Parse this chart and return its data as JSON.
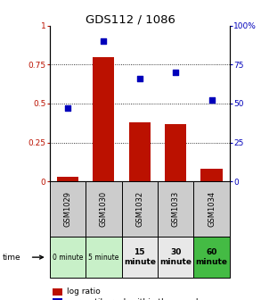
{
  "title": "GDS112 / 1086",
  "samples": [
    "GSM1029",
    "GSM1030",
    "GSM1032",
    "GSM1033",
    "GSM1034"
  ],
  "log_ratio": [
    0.03,
    0.8,
    0.38,
    0.37,
    0.08
  ],
  "percentile_rank": [
    47,
    90,
    66,
    70,
    52
  ],
  "time_labels": [
    "0 minute",
    "5 minute",
    "15\nminute",
    "30\nminute",
    "60\nminute"
  ],
  "time_colors": [
    "#c8f0c8",
    "#c8f0c8",
    "#e8e8e8",
    "#e8e8e8",
    "#44bb44"
  ],
  "bar_color": "#bb1100",
  "dot_color": "#0000bb",
  "sample_bg": "#cccccc",
  "ylim_left": [
    0,
    1
  ],
  "ylim_right": [
    0,
    100
  ],
  "yticks_left": [
    0,
    0.25,
    0.5,
    0.75,
    1.0
  ],
  "ytick_labels_left": [
    "0",
    "0.25",
    "0.5",
    "0.75",
    "1"
  ],
  "yticks_right": [
    0,
    25,
    50,
    75,
    100
  ],
  "ytick_labels_right": [
    "0",
    "25",
    "50",
    "75",
    "100%"
  ]
}
